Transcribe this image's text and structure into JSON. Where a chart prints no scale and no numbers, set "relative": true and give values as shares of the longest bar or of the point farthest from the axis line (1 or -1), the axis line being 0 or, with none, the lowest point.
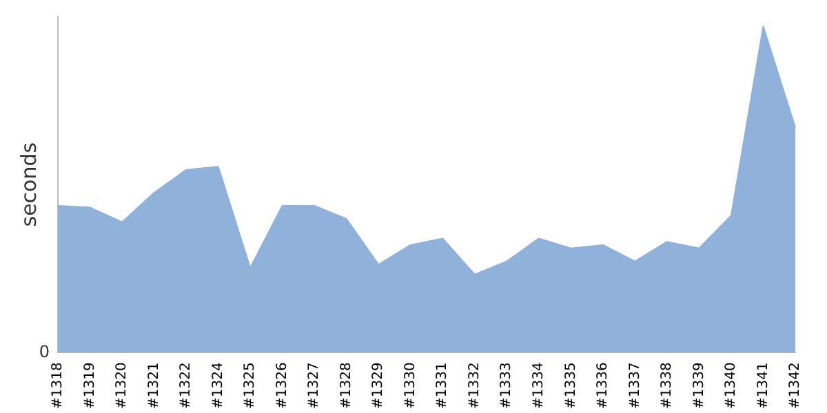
{
  "chart_data": {
    "type": "area",
    "ylabel": "seconds",
    "relative": true,
    "annotations": [
      "0"
    ],
    "categories": [
      "#1318",
      "#1319",
      "#1320",
      "#1321",
      "#1322",
      "#1324",
      "#1325",
      "#1326",
      "#1327",
      "#1328",
      "#1329",
      "#1330",
      "#1331",
      "#1332",
      "#1333",
      "#1334",
      "#1335",
      "#1336",
      "#1337",
      "#1338",
      "#1339",
      "#1340",
      "#1341",
      "#1342"
    ],
    "series": [
      {
        "color": "#8fb1da",
        "values": [
          0.45,
          0.445,
          0.4,
          0.49,
          0.56,
          0.57,
          0.26,
          0.45,
          0.45,
          0.41,
          0.27,
          0.33,
          0.35,
          0.24,
          0.28,
          0.35,
          0.32,
          0.33,
          0.28,
          0.34,
          0.32,
          0.42,
          1,
          0.69
        ]
      }
    ],
    "grid": false,
    "legend": false
  }
}
